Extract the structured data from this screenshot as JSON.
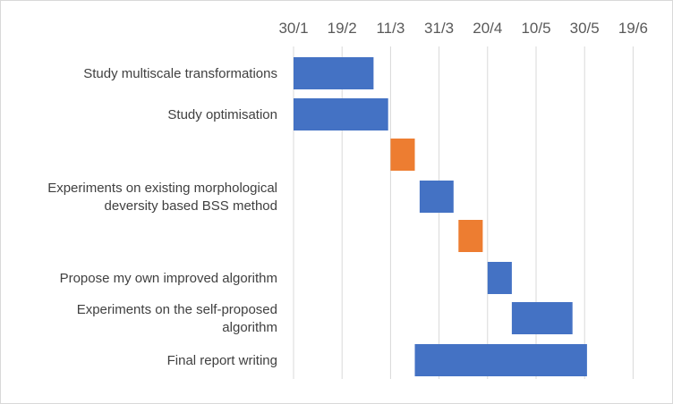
{
  "chart_data": {
    "type": "gantt",
    "x_axis": {
      "ticks": [
        "30/1",
        "19/2",
        "11/3",
        "31/3",
        "20/4",
        "10/5",
        "30/5",
        "19/6"
      ],
      "tick_interval_days": 20
    },
    "grid": "vertical",
    "colors": {
      "blue": "#4472c4",
      "orange": "#ed7d31"
    },
    "rows": [
      {
        "label": "Study multiscale transformations",
        "start": "30/1",
        "end": "4/3",
        "color": "blue"
      },
      {
        "label": "Study optimisation",
        "start": "30/1",
        "end": "10/3",
        "color": "blue"
      },
      {
        "label": "",
        "start": "11/3",
        "end": "21/3",
        "color": "orange"
      },
      {
        "label": "Experiments on existing morphological deversity based BSS method",
        "label_lines": [
          "Experiments on existing morphological",
          "deversity based BSS method"
        ],
        "start": "23/3",
        "end": "6/4",
        "color": "blue"
      },
      {
        "label": "",
        "start": "8/4",
        "end": "18/4",
        "color": "orange"
      },
      {
        "label": "Propose my own improved algorithm",
        "start": "20/4",
        "end": "30/4",
        "color": "blue"
      },
      {
        "label": "Experiments on the self-proposed algorithm",
        "label_lines": [
          "Experiments on the self-proposed",
          "algorithm"
        ],
        "start": "30/4",
        "end": "25/5",
        "color": "blue"
      },
      {
        "label": "Final report writing",
        "start": "21/3",
        "end": "31/5",
        "color": "blue"
      }
    ]
  }
}
